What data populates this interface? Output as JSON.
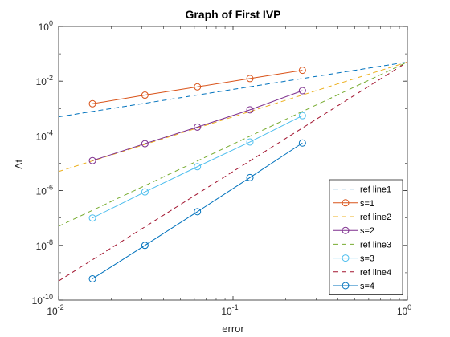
{
  "chart_data": {
    "type": "line",
    "title": "Graph of First IVP",
    "xlabel": "error",
    "ylabel": "Δt",
    "xscale": "log",
    "yscale": "log",
    "xlim": [
      0.01,
      1
    ],
    "ylim": [
      1e-10,
      1
    ],
    "x_ticks": [
      {
        "value": 0.01,
        "base": "10",
        "exp": "-2"
      },
      {
        "value": 0.1,
        "base": "10",
        "exp": "-1"
      },
      {
        "value": 1,
        "base": "10",
        "exp": "0"
      }
    ],
    "y_ticks": [
      {
        "value": 1e-10,
        "base": "10",
        "exp": "-10"
      },
      {
        "value": 1e-08,
        "base": "10",
        "exp": "-8"
      },
      {
        "value": 1e-06,
        "base": "10",
        "exp": "-6"
      },
      {
        "value": 0.0001,
        "base": "10",
        "exp": "-4"
      },
      {
        "value": 0.01,
        "base": "10",
        "exp": "-2"
      },
      {
        "value": 1,
        "base": "10",
        "exp": "0"
      }
    ],
    "grid": false,
    "legend_position": "bottom-right",
    "series": [
      {
        "name": "ref line1",
        "style": "dashed",
        "marker": "none",
        "color": "#0072BD",
        "x": [
          0.01,
          1
        ],
        "y": [
          0.0005,
          0.05
        ]
      },
      {
        "name": "s=1",
        "style": "solid",
        "marker": "circle",
        "color": "#D95319",
        "x": [
          0.015625,
          0.03125,
          0.0625,
          0.125,
          0.25
        ],
        "y": [
          0.0015,
          0.0031,
          0.0062,
          0.0125,
          0.025
        ]
      },
      {
        "name": "ref line2",
        "style": "dashed",
        "marker": "none",
        "color": "#EDB120",
        "x": [
          0.01,
          1
        ],
        "y": [
          5e-06,
          0.05
        ]
      },
      {
        "name": "s=2",
        "style": "solid",
        "marker": "circle",
        "color": "#7E2F8E",
        "x": [
          0.015625,
          0.03125,
          0.0625,
          0.125,
          0.25
        ],
        "y": [
          1.25e-05,
          5.2e-05,
          0.00021,
          0.0009,
          0.0045
        ]
      },
      {
        "name": "ref line3",
        "style": "dashed",
        "marker": "none",
        "color": "#77AC30",
        "x": [
          0.01,
          1
        ],
        "y": [
          5e-08,
          0.05
        ]
      },
      {
        "name": "s=3",
        "style": "solid",
        "marker": "circle",
        "color": "#4DBEEE",
        "x": [
          0.015625,
          0.03125,
          0.0625,
          0.125,
          0.25
        ],
        "y": [
          1e-07,
          9e-07,
          7.5e-06,
          6e-05,
          0.00055
        ]
      },
      {
        "name": "ref line4",
        "style": "dashed",
        "marker": "none",
        "color": "#A2142F",
        "x": [
          0.01,
          1
        ],
        "y": [
          5e-10,
          0.05
        ]
      },
      {
        "name": "s=4",
        "style": "solid",
        "marker": "circle",
        "color": "#0072BD",
        "x": [
          0.015625,
          0.03125,
          0.0625,
          0.125,
          0.25
        ],
        "y": [
          6e-10,
          1e-08,
          1.7e-07,
          3e-06,
          5.5e-05
        ]
      }
    ]
  }
}
